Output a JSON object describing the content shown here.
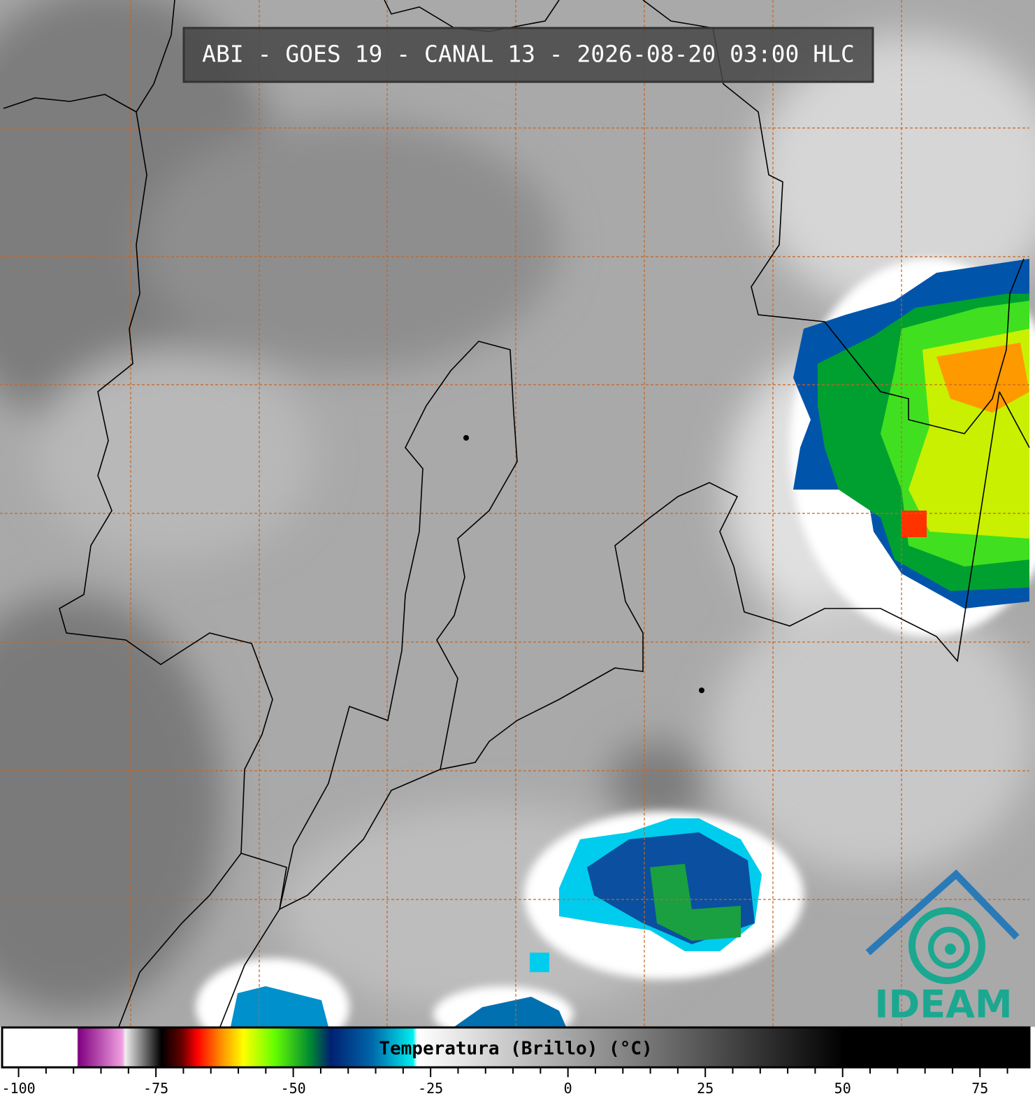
{
  "map": {
    "title": "ABI - GOES 19 - CANAL 13 - 2026-08-20 03:00 HLC",
    "logo": "IDEAM"
  },
  "colorbar": {
    "label": "Temperatura (Brillo) (°C)",
    "lim": [
      -103,
      84
    ],
    "ticks": [
      -100,
      -75,
      -50,
      -25,
      0,
      25,
      50,
      75
    ],
    "minor_step": 5
  }
}
